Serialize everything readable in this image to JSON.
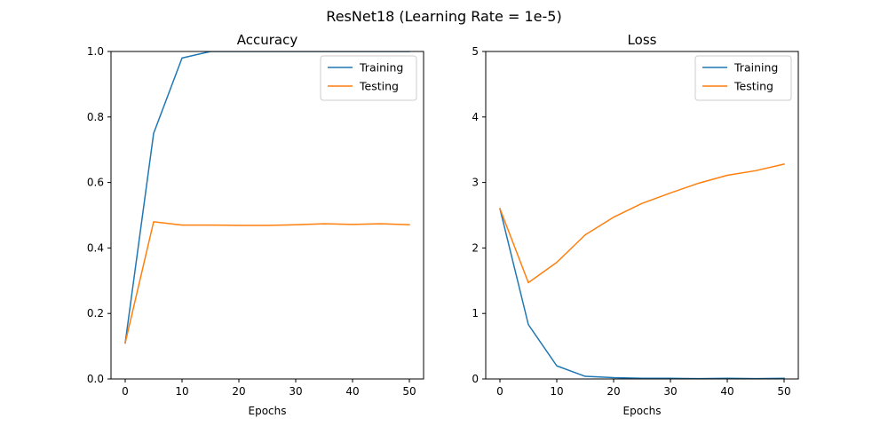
{
  "figure": {
    "title": "ResNet18 (Learning Rate = 1e-5)"
  },
  "colors": {
    "training": "#1f77b4",
    "testing": "#ff7f0e"
  },
  "chart_data": [
    {
      "type": "line",
      "title": "Accuracy",
      "xlabel": "Epochs",
      "ylabel": "",
      "xlim": [
        -2.5,
        52.5
      ],
      "ylim": [
        0,
        1
      ],
      "xticks": [
        0,
        10,
        20,
        30,
        40,
        50
      ],
      "yticks": [
        0.0,
        0.2,
        0.4,
        0.6,
        0.8,
        1.0
      ],
      "ytick_labels": [
        "0.0",
        "0.2",
        "0.4",
        "0.6",
        "0.8",
        "1.0"
      ],
      "legend_position": "top-right",
      "x": [
        0,
        5,
        10,
        15,
        20,
        25,
        30,
        35,
        40,
        45,
        50
      ],
      "series": [
        {
          "name": "Training",
          "values": [
            0.11,
            0.75,
            0.98,
            1.0,
            1.0,
            1.0,
            1.0,
            1.0,
            1.0,
            1.0,
            1.0
          ]
        },
        {
          "name": "Testing",
          "values": [
            0.11,
            0.48,
            0.47,
            0.47,
            0.469,
            0.469,
            0.471,
            0.474,
            0.472,
            0.474,
            0.471
          ]
        }
      ]
    },
    {
      "type": "line",
      "title": "Loss",
      "xlabel": "Epochs",
      "ylabel": "",
      "xlim": [
        -2.5,
        52.5
      ],
      "ylim": [
        0,
        5
      ],
      "xticks": [
        0,
        10,
        20,
        30,
        40,
        50
      ],
      "yticks": [
        0,
        1,
        2,
        3,
        4,
        5
      ],
      "ytick_labels": [
        "0",
        "1",
        "2",
        "3",
        "4",
        "5"
      ],
      "legend_position": "top-right",
      "x": [
        0,
        5,
        10,
        15,
        20,
        25,
        30,
        35,
        40,
        45,
        50
      ],
      "series": [
        {
          "name": "Training",
          "values": [
            2.6,
            0.83,
            0.2,
            0.04,
            0.02,
            0.01,
            0.01,
            0.005,
            0.01,
            0.005,
            0.01
          ]
        },
        {
          "name": "Testing",
          "values": [
            2.6,
            1.47,
            1.78,
            2.2,
            2.47,
            2.68,
            2.84,
            2.99,
            3.11,
            3.18,
            3.28
          ]
        }
      ]
    }
  ]
}
